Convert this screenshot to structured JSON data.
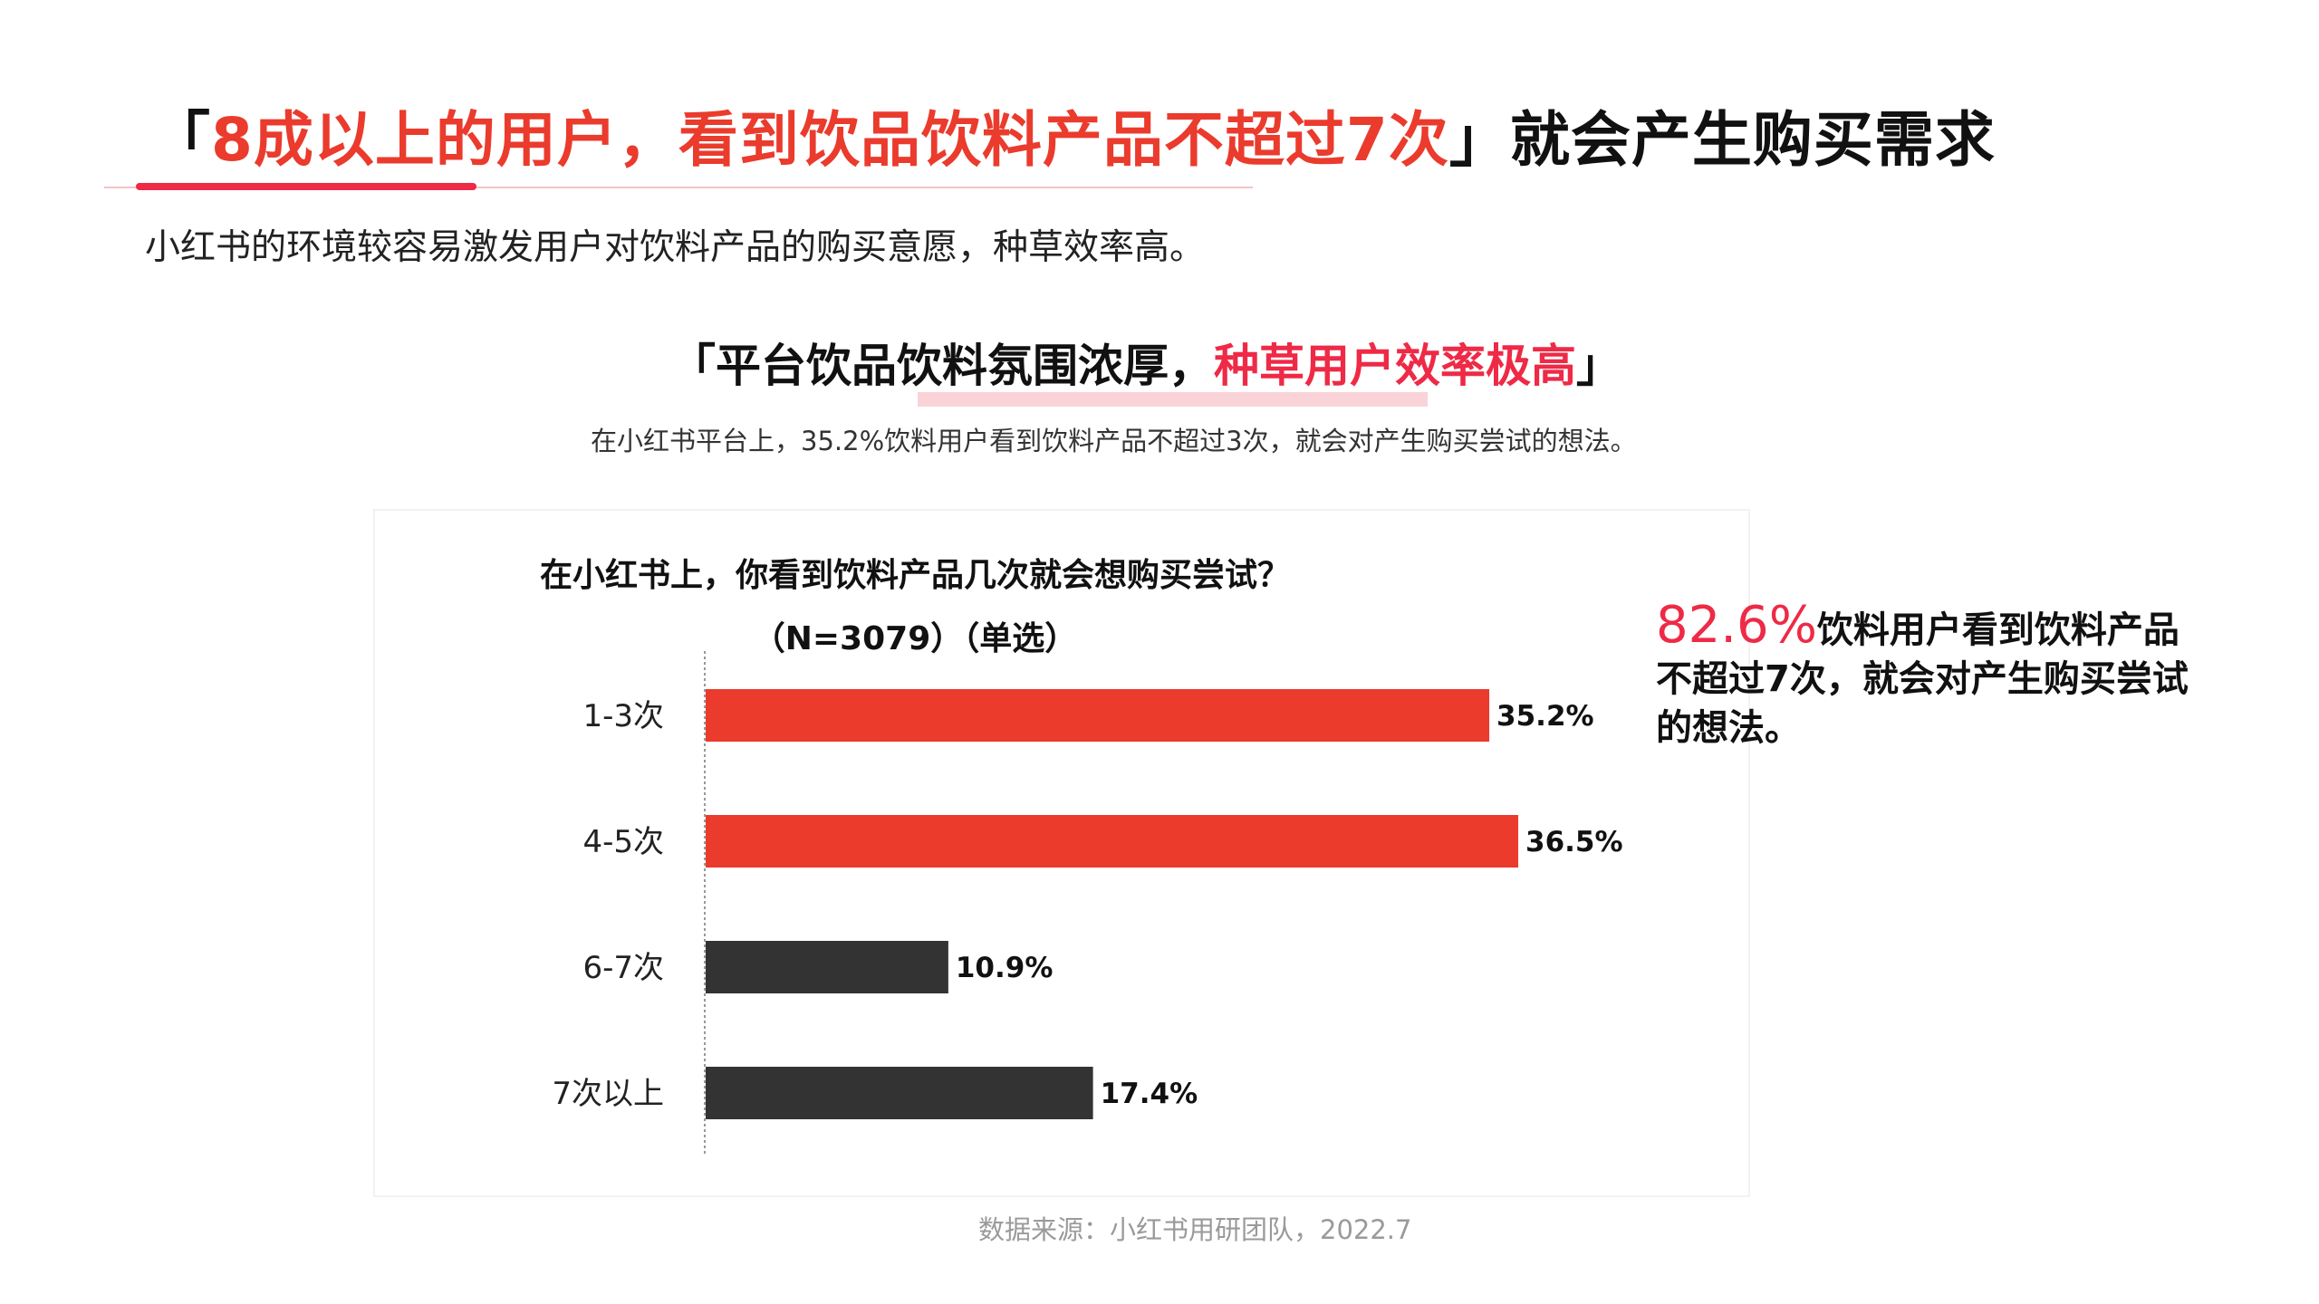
{
  "header": {
    "open_bracket": "「",
    "highlight": "8成以上的用户，看到饮品饮料产品不超过7次",
    "close_bracket": "」",
    "tail": "就会产生购买需求"
  },
  "subtitle": "小红书的环境较容易激发用户对饮料产品的购买意愿，种草效率高。",
  "section": {
    "open_bracket": "「",
    "title_dark": "平台饮品饮料氛围浓厚，",
    "title_pink": "种草用户效率极高",
    "close_bracket": "」",
    "desc": "在小红书平台上，35.2%饮料用户看到饮料产品不超过3次，就会对产生购买尝试的想法。"
  },
  "callout": {
    "percent": "82.6%",
    "text": "饮料用户看到饮料产品不超过7次，就会对产生购买尝试的想法。"
  },
  "source": "数据来源：小红书用研团队，2022.7",
  "colors": {
    "accent_red": "#ea3b2d",
    "accent_pink": "#ee2a46",
    "dark_bar": "#333333"
  },
  "chart_data": {
    "type": "bar",
    "orientation": "horizontal",
    "title": "在小红书上，你看到饮料产品几次就会想购买尝试？",
    "subtitle": "（N=3079）（单选）",
    "categories": [
      "1-3次",
      "4-5次",
      "6-7次",
      "7次以上"
    ],
    "values": [
      35.2,
      36.5,
      10.9,
      17.4
    ],
    "value_labels": [
      "35.2%",
      "36.5%",
      "10.9%",
      "17.4%"
    ],
    "bar_colors": [
      "#ea3b2d",
      "#ea3b2d",
      "#333333",
      "#333333"
    ],
    "xlim": [
      0,
      36.5
    ],
    "grid": false,
    "legend": "none"
  }
}
